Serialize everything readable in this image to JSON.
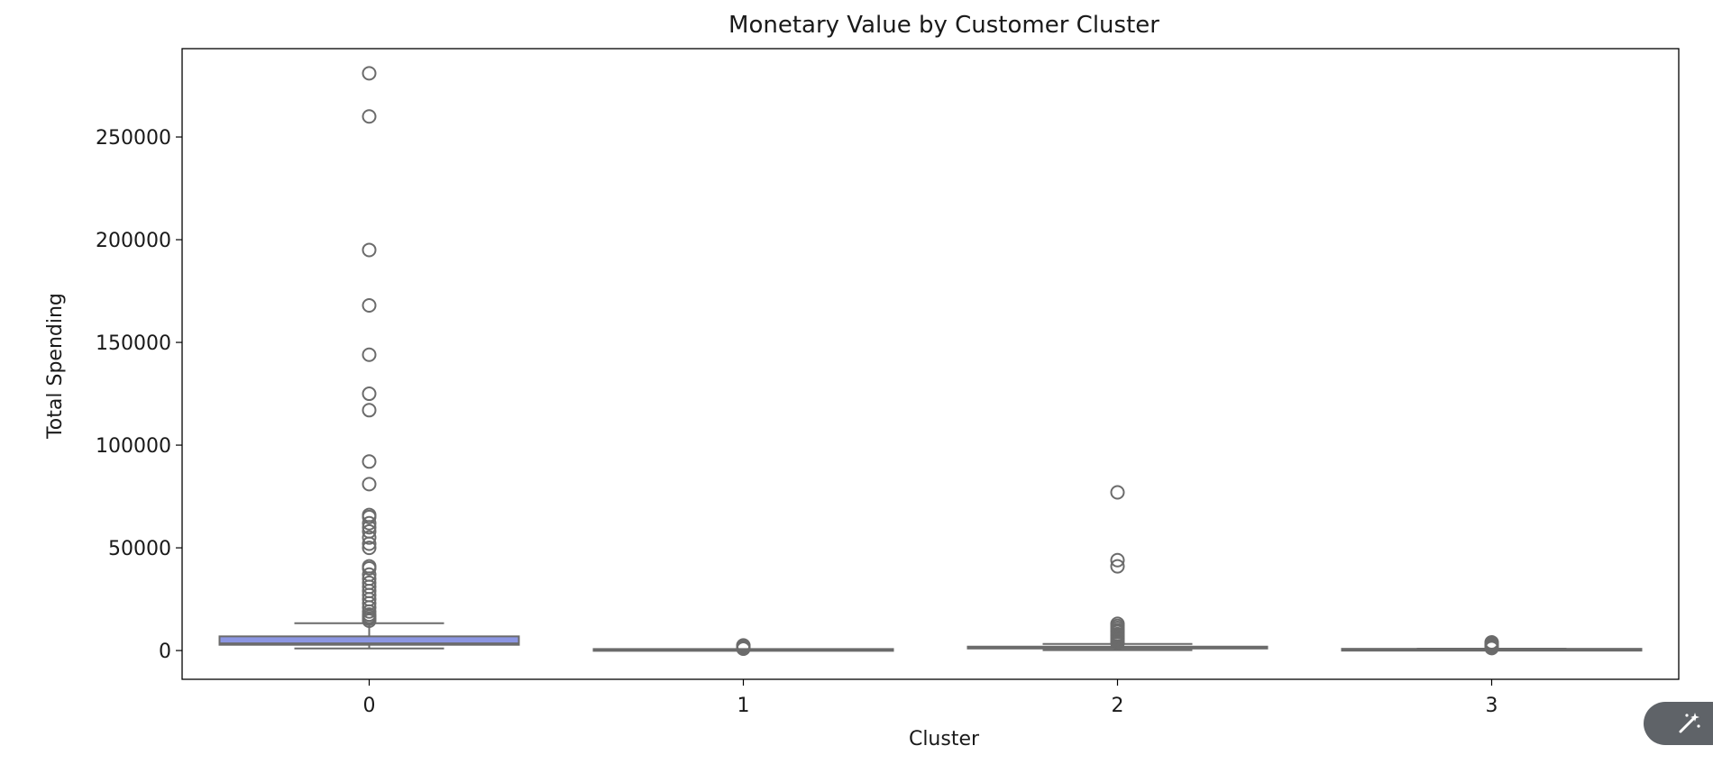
{
  "chart_data": {
    "type": "box",
    "title": "Monetary Value by Customer Cluster",
    "xlabel": "Cluster",
    "ylabel": "Total Spending",
    "categories": [
      "0",
      "1",
      "2",
      "3"
    ],
    "ylim": [
      -14000,
      293000
    ],
    "yticks": [
      0,
      50000,
      100000,
      150000,
      200000,
      250000
    ],
    "grid": false,
    "colors": {
      "cluster_0_box": "#8c96e3",
      "other_box": "#8c96e3",
      "line": "#6b6b6b"
    },
    "boxes": [
      {
        "cluster": "0",
        "whisker_low": 1000,
        "q1": 2800,
        "median": 3500,
        "q3": 6900,
        "whisker_high": 13300,
        "outliers": [
          281000,
          260000,
          195000,
          168000,
          144000,
          125000,
          117000,
          92000,
          81000,
          66000,
          65000,
          62000,
          60000,
          58000,
          55000,
          52000,
          50000,
          41000,
          40000,
          37000,
          35000,
          33000,
          31000,
          29000,
          27000,
          25000,
          23000,
          21000,
          19000,
          17500,
          16500,
          15500,
          14500
        ]
      },
      {
        "cluster": "1",
        "whisker_low": 50,
        "q1": 150,
        "median": 250,
        "q3": 450,
        "whisker_high": 700,
        "outliers": [
          2500,
          2200,
          1900,
          1600,
          1300,
          1000,
          900
        ]
      },
      {
        "cluster": "2",
        "whisker_low": 200,
        "q1": 1000,
        "median": 1500,
        "q3": 1900,
        "whisker_high": 3200,
        "outliers": [
          77000,
          44000,
          41000,
          13000,
          12000,
          11000,
          10000,
          9500,
          9000,
          8000,
          7500,
          7000,
          6500,
          6000,
          5500,
          5000,
          4500,
          4000,
          3600
        ]
      },
      {
        "cluster": "3",
        "whisker_low": 50,
        "q1": 200,
        "median": 350,
        "q3": 600,
        "whisker_high": 900,
        "outliers": [
          4000,
          3500,
          3000,
          2600,
          2200,
          1800,
          1500,
          1200
        ]
      }
    ]
  },
  "ui": {
    "magic_button_icon": "magic-wand-icon"
  }
}
